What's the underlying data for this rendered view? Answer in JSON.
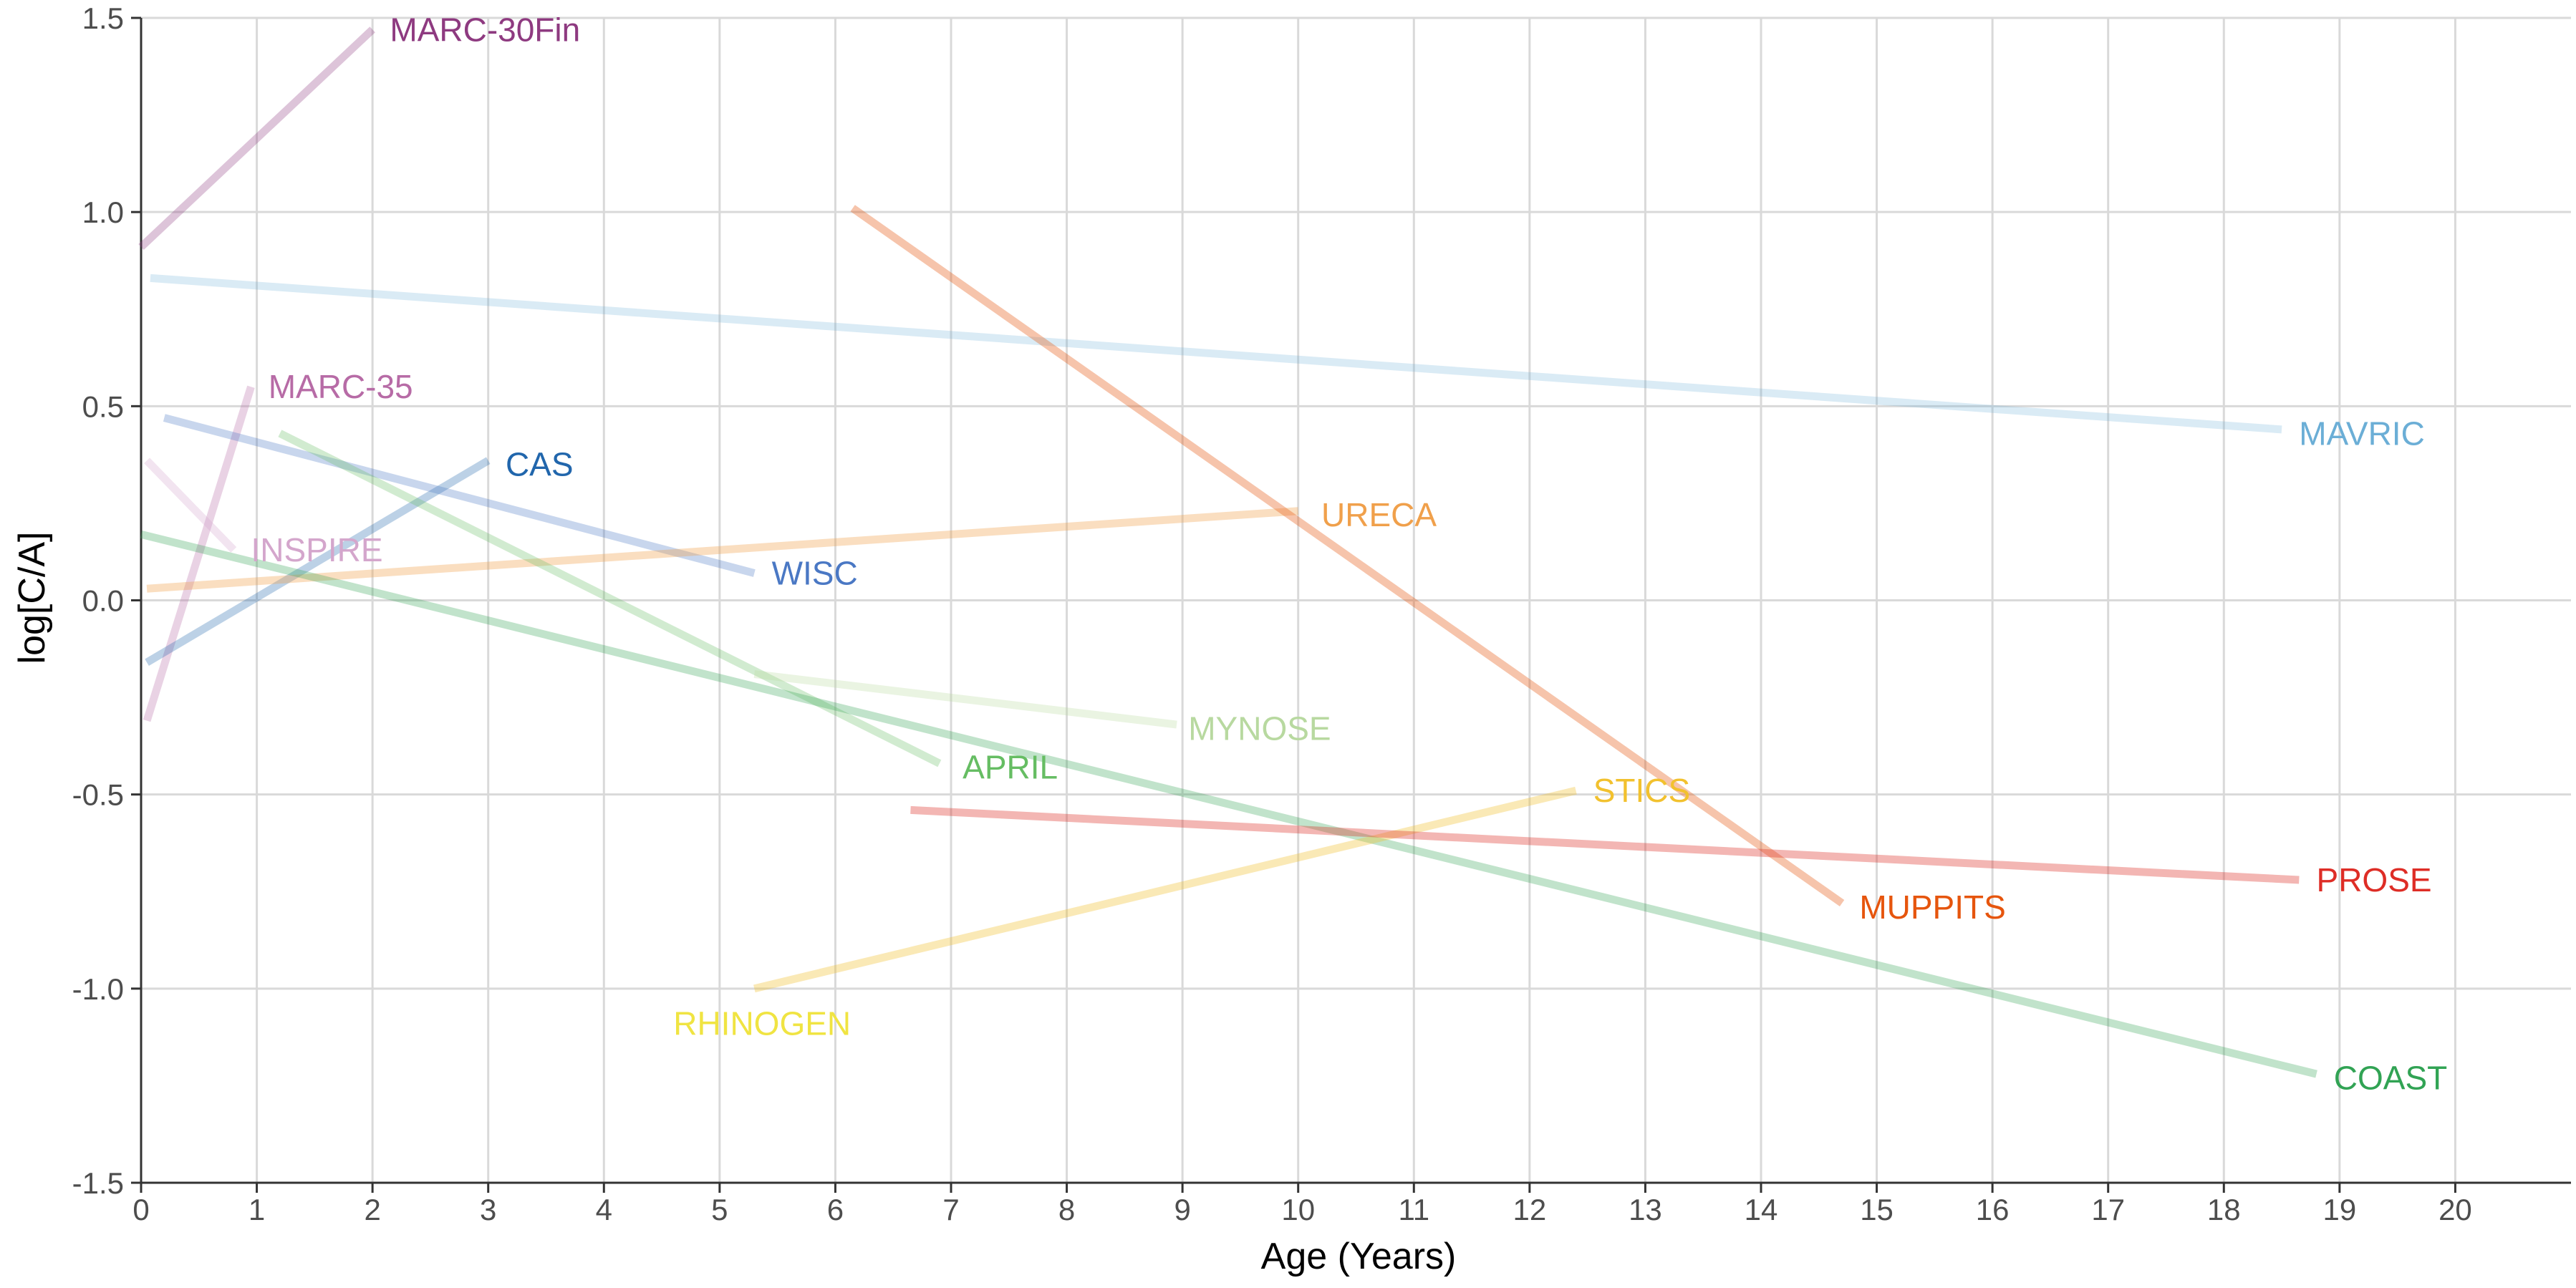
{
  "chart_data": {
    "type": "line",
    "title": "",
    "xlabel": "Age (Years)",
    "ylabel": "log[C/A]",
    "xlim": [
      0,
      21
    ],
    "ylim": [
      -1.5,
      1.5
    ],
    "x_ticks": [
      0,
      1,
      2,
      3,
      4,
      5,
      6,
      7,
      8,
      9,
      10,
      11,
      12,
      13,
      14,
      15,
      16,
      17,
      18,
      19,
      20
    ],
    "x_tick_labels": [
      "0",
      "1",
      "2",
      "3",
      "4",
      "5",
      "6",
      "7",
      "8",
      "9",
      "10",
      "11",
      "12",
      "13",
      "14",
      "15",
      "16",
      "17",
      "18",
      "19",
      "20"
    ],
    "y_ticks": [
      -1.5,
      -1.0,
      -0.5,
      0.0,
      0.5,
      1.0,
      1.5
    ],
    "y_tick_labels": [
      "-1.5",
      "-1.0",
      "-0.5",
      "0.0",
      "0.5",
      "1.0",
      "1.5"
    ],
    "grid": true,
    "legend": "none (direct labels)",
    "series": [
      {
        "name": "MARC-30Fin",
        "x": [
          0.0,
          2.0
        ],
        "y": [
          0.91,
          1.47
        ],
        "color": "#8e3a80",
        "opacity": 0.3
      },
      {
        "name": "MAVRIC",
        "x": [
          0.08,
          18.5
        ],
        "y": [
          0.83,
          0.44
        ],
        "color": "#6baed6",
        "opacity": 0.25
      },
      {
        "name": "MARC-35",
        "x": [
          0.05,
          0.95
        ],
        "y": [
          -0.31,
          0.55
        ],
        "color": "#b76ba6",
        "opacity": 0.3
      },
      {
        "name": "INSPIRE",
        "x": [
          0.05,
          0.8
        ],
        "y": [
          0.36,
          0.13
        ],
        "color": "#d4a6cc",
        "opacity": 0.3
      },
      {
        "name": "CAS",
        "x": [
          0.05,
          3.0
        ],
        "y": [
          -0.16,
          0.36
        ],
        "color": "#2166ac",
        "opacity": 0.3
      },
      {
        "name": "WISC",
        "x": [
          0.2,
          5.3
        ],
        "y": [
          0.47,
          0.07
        ],
        "color": "#4a78c4",
        "opacity": 0.3
      },
      {
        "name": "URECA",
        "x": [
          0.05,
          10.0
        ],
        "y": [
          0.03,
          0.23
        ],
        "color": "#f0a04b",
        "opacity": 0.35
      },
      {
        "name": "MUPPITS",
        "x": [
          6.15,
          14.7
        ],
        "y": [
          1.01,
          -0.78
        ],
        "color": "#e6550d",
        "opacity": 0.35
      },
      {
        "name": "APRIL",
        "x": [
          1.2,
          6.9
        ],
        "y": [
          0.43,
          -0.42
        ],
        "color": "#66bd63",
        "opacity": 0.3
      },
      {
        "name": "MYNOSE",
        "x": [
          5.3,
          8.95
        ],
        "y": [
          -0.19,
          -0.32
        ],
        "color": "#b8d9a0",
        "opacity": 0.3
      },
      {
        "name": "COAST",
        "x": [
          0.0,
          18.8
        ],
        "y": [
          0.17,
          -1.22
        ],
        "color": "#31a354",
        "opacity": 0.3
      },
      {
        "name": "STICS",
        "x": [
          5.3,
          12.4
        ],
        "y": [
          -1.0,
          -0.49
        ],
        "color": "#f2c12e",
        "opacity": 0.35
      },
      {
        "name": "PROSE",
        "x": [
          6.65,
          18.65
        ],
        "y": [
          -0.54,
          -0.72
        ],
        "color": "#de2d26",
        "opacity": 0.35
      },
      {
        "name": "RHINOGEN",
        "x": [],
        "y": [],
        "color": "#f0e442",
        "opacity": 1.0
      }
    ],
    "labels": [
      {
        "text": "MARC-30Fin",
        "x": 2.15,
        "y": 1.47,
        "color": "#8e3a80"
      },
      {
        "text": "MAVRIC",
        "x": 18.65,
        "y": 0.43,
        "color": "#6baed6"
      },
      {
        "text": "MARC-35",
        "x": 1.1,
        "y": 0.55,
        "color": "#b76ba6"
      },
      {
        "text": "INSPIRE",
        "x": 0.95,
        "y": 0.13,
        "color": "#d4a6cc"
      },
      {
        "text": "CAS",
        "x": 3.15,
        "y": 0.35,
        "color": "#2166ac"
      },
      {
        "text": "WISC",
        "x": 5.45,
        "y": 0.07,
        "color": "#4a78c4"
      },
      {
        "text": "URECA",
        "x": 10.2,
        "y": 0.22,
        "color": "#f0a04b"
      },
      {
        "text": "MUPPITS",
        "x": 14.85,
        "y": -0.79,
        "color": "#e6550d"
      },
      {
        "text": "APRIL",
        "x": 7.1,
        "y": -0.43,
        "color": "#66bd63"
      },
      {
        "text": "MYNOSE",
        "x": 9.05,
        "y": -0.33,
        "color": "#b8d9a0"
      },
      {
        "text": "COAST",
        "x": 18.95,
        "y": -1.23,
        "color": "#31a354"
      },
      {
        "text": "STICS",
        "x": 12.55,
        "y": -0.49,
        "color": "#f2c12e"
      },
      {
        "text": "PROSE",
        "x": 18.8,
        "y": -0.72,
        "color": "#de2d26"
      },
      {
        "text": "RHINOGEN",
        "x": 4.6,
        "y": -1.09,
        "color": "#f0e442"
      }
    ]
  }
}
